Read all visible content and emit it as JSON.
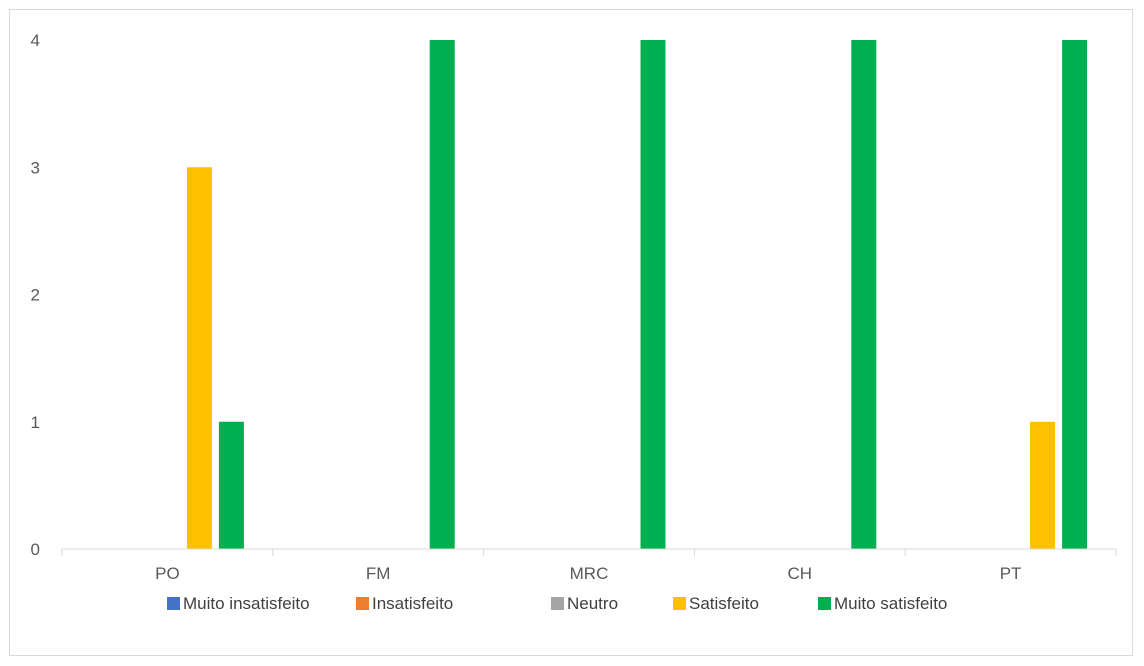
{
  "chart_data": {
    "type": "bar",
    "categories": [
      "PO",
      "FM",
      "MRC",
      "CH",
      "PT"
    ],
    "series": [
      {
        "name": "Muito insatisfeito",
        "color": "#4472C4",
        "values": [
          0,
          0,
          0,
          0,
          0
        ]
      },
      {
        "name": "Insatisfeito",
        "color": "#ED7D31",
        "values": [
          0,
          0,
          0,
          0,
          0
        ]
      },
      {
        "name": "Neutro",
        "color": "#A5A5A5",
        "values": [
          0,
          0,
          0,
          0,
          0
        ]
      },
      {
        "name": "Satisfeito",
        "color": "#FFC000",
        "values": [
          3,
          0,
          0,
          0,
          1
        ]
      },
      {
        "name": "Muito satisfeito",
        "color": "#00B050",
        "values": [
          1,
          4,
          4,
          4,
          4
        ]
      }
    ],
    "yticks": [
      "0",
      "1",
      "2",
      "3",
      "4"
    ],
    "ylim": [
      0,
      4
    ],
    "grid": false,
    "legend_position": "bottom"
  }
}
